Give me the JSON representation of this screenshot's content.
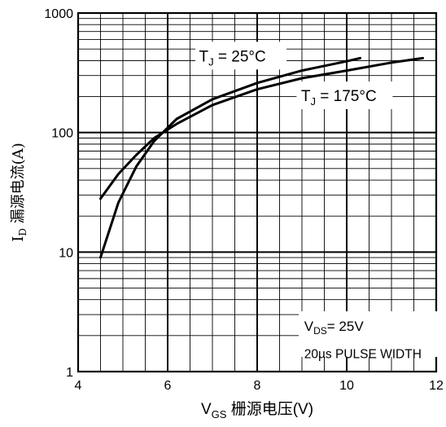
{
  "chart_data": {
    "type": "line",
    "x_scale": "linear",
    "y_scale": "log",
    "xlim": [
      4,
      12
    ],
    "ylim": [
      1,
      1000
    ],
    "x_ticks": [
      {
        "value": 4,
        "label": "4"
      },
      {
        "value": 6,
        "label": "6"
      },
      {
        "value": 8,
        "label": "8"
      },
      {
        "value": 10,
        "label": "10"
      },
      {
        "value": 12,
        "label": "12"
      }
    ],
    "y_ticks": [
      {
        "value": 1,
        "label": "1"
      },
      {
        "value": 10,
        "label": "10"
      },
      {
        "value": 100,
        "label": "100"
      },
      {
        "value": 1000,
        "label": "1000"
      }
    ],
    "grid": true,
    "xlabel": {
      "main": "V",
      "sub": "GS",
      "rest": " 栅源电压(V)"
    },
    "ylabel": {
      "main": "I",
      "sub": "D",
      "rest": " 漏源电流(A)"
    },
    "series": [
      {
        "name": "T_J = 25°C",
        "label": {
          "main": "T",
          "sub": "J",
          "rest": " = 25°C"
        },
        "x": [
          4.5,
          4.9,
          5.3,
          5.7,
          6.2,
          7.0,
          8.0,
          9.0,
          10.0,
          10.3
        ],
        "y": [
          9,
          26,
          52,
          85,
          130,
          190,
          260,
          330,
          395,
          420
        ]
      },
      {
        "name": "T_J = 175°C",
        "label": {
          "main": "T",
          "sub": "J",
          "rest": " = 175°C"
        },
        "x": [
          4.5,
          4.9,
          5.3,
          5.7,
          6.2,
          7.0,
          8.0,
          9.0,
          10.0,
          11.0,
          11.7
        ],
        "y": [
          28,
          45,
          65,
          90,
          118,
          170,
          230,
          285,
          330,
          385,
          420
        ]
      }
    ],
    "annotations": [
      {
        "main": "V",
        "sub": "DS",
        "rest": "= 25V"
      },
      {
        "text": "20µs PULSE WIDTH"
      }
    ]
  }
}
